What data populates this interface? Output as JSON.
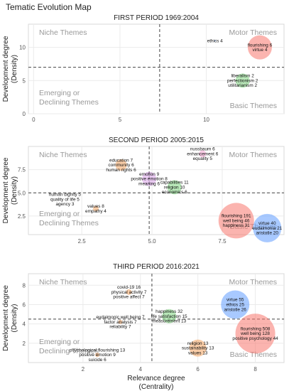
{
  "title": "Tematic Evolution Map",
  "xlabel": "Relevance degree\n(Centrality)",
  "ylabel": "Development degree\n(Density)",
  "quadrant_labels": {
    "top_left": "Niche Themes",
    "top_right": "Motor Themes",
    "bottom_left": "Emerging or\nDeclining Themes",
    "bottom_right": "Basic Themes"
  },
  "colors": {
    "background": "#ffffff",
    "panel": "#ffffff",
    "grid": "#ebebeb",
    "axis": "#333333",
    "quadrant_text": "#999999",
    "red": "#f8766d",
    "blue": "#619cff",
    "green": "#7fd67f",
    "orange": "#f4a460",
    "purple": "#d8a0e8",
    "pink": "#f4a0d0"
  },
  "chart_data": [
    {
      "type": "scatter",
      "title": "FIRST PERIOD 1969:2004",
      "xlim": [
        -0.3,
        14.5
      ],
      "ylim": [
        0,
        13.5
      ],
      "xticks": [
        0,
        5,
        10
      ],
      "yticks": [
        0,
        5,
        10
      ],
      "vline": 7.3,
      "hline": 7,
      "points": [
        {
          "x": 10.5,
          "y": 11,
          "r": 1,
          "color": "blue",
          "labels": [
            "ethics 4"
          ]
        },
        {
          "x": 13.1,
          "y": 10,
          "r": 17,
          "color": "red",
          "labels": [
            "flourishing 6",
            "virtue 4"
          ]
        },
        {
          "x": 12.1,
          "y": 5,
          "r": 10,
          "color": "green",
          "labels": [
            "liberalism 2",
            "perfectionism 2",
            "utilitarianism 2"
          ]
        }
      ]
    },
    {
      "type": "scatter",
      "title": "SECOND PERIOD 2005:2015",
      "xlim": [
        0.6,
        9.7
      ],
      "ylim": [
        0.5,
        10
      ],
      "xticks": [
        2.5,
        5.0,
        7.5
      ],
      "yticks": [
        2.5,
        5.0,
        7.5
      ],
      "vline": 4.9,
      "hline": 5,
      "points": [
        {
          "x": 6.8,
          "y": 9.2,
          "r": 5,
          "color": "pink",
          "labels": [
            "nussbaum 6",
            "enhancement 6",
            "equality 5"
          ]
        },
        {
          "x": 3.9,
          "y": 8,
          "r": 8,
          "color": "orange",
          "labels": [
            "education 7",
            "community 6",
            "human rights 6"
          ]
        },
        {
          "x": 4.9,
          "y": 6.5,
          "r": 10,
          "color": "purple",
          "labels": [
            "emotion 9",
            "positive emotion 8",
            "meaning 6"
          ]
        },
        {
          "x": 5.8,
          "y": 5.6,
          "r": 10,
          "color": "green",
          "labels": [
            "capabilities 11",
            "religion 10",
            "economics 6"
          ]
        },
        {
          "x": 1.9,
          "y": 4.3,
          "r": 0,
          "color": "blue",
          "labels": [
            "human dignity 5",
            "quality of life 5",
            "agency 3"
          ]
        },
        {
          "x": 3.0,
          "y": 3.3,
          "r": 4,
          "color": "orange",
          "labels": [
            "values 8",
            "empathy 4"
          ]
        },
        {
          "x": 8.0,
          "y": 2,
          "r": 25,
          "color": "red",
          "labels": [
            "flourishing 191",
            "well being 46",
            "happiness 31"
          ]
        },
        {
          "x": 9.1,
          "y": 1.2,
          "r": 20,
          "color": "blue",
          "labels": [
            "virtue 40",
            "eudaimonia 21",
            "aristotle 20"
          ]
        }
      ]
    },
    {
      "type": "scatter",
      "title": "THIRD PERIOD 2016:2021",
      "xlim": [
        0.1,
        9.0
      ],
      "ylim": [
        0,
        9.2
      ],
      "xticks": [
        2,
        4,
        6,
        8
      ],
      "yticks": [
        2,
        4,
        6,
        8
      ],
      "vline": 4.4,
      "hline": 4.5,
      "points": [
        {
          "x": 3.6,
          "y": 7.3,
          "r": 4,
          "color": "orange",
          "labels": [
            "covid-19 16",
            "physical activity 7",
            "positive affect 7"
          ]
        },
        {
          "x": 3.3,
          "y": 4.2,
          "r": 3,
          "color": "orange",
          "labels": [
            "eudaimonic well being 7",
            "factor analysis 7",
            "reliability 7"
          ]
        },
        {
          "x": 5.0,
          "y": 4.8,
          "r": 10,
          "color": "green",
          "labels": [
            "happiness 32",
            "life satisfaction 15",
            "measurement 13"
          ]
        },
        {
          "x": 7.3,
          "y": 6.0,
          "r": 20,
          "color": "blue",
          "labels": [
            "virtue 55",
            "ethics 25",
            "aristotle 26"
          ]
        },
        {
          "x": 8.0,
          "y": 3.0,
          "r": 28,
          "color": "red",
          "labels": [
            "flourishing 508",
            "well being 128",
            "positive psychology 44"
          ]
        },
        {
          "x": 6.0,
          "y": 1.5,
          "r": 12,
          "color": "orange",
          "labels": [
            "religion 13",
            "sustainability 13",
            "values 13"
          ]
        },
        {
          "x": 2.5,
          "y": 0.8,
          "r": 3,
          "color": "orange",
          "labels": [
            "psychological flourishing 13",
            "positive emotion 9",
            "suicide 6"
          ]
        }
      ]
    }
  ]
}
